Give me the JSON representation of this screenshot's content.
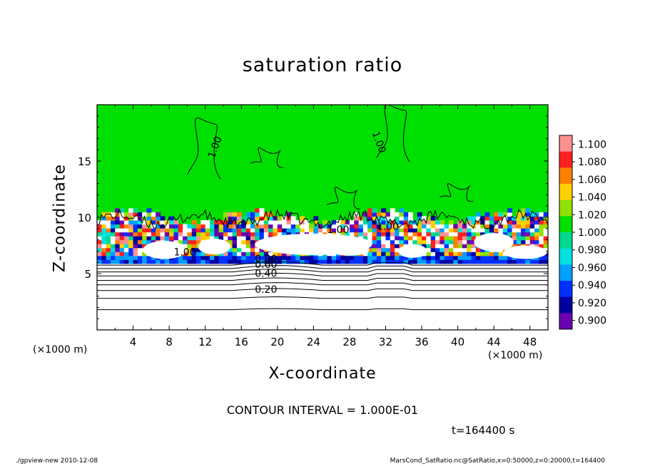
{
  "chart_data": {
    "type": "heatmap",
    "title": "saturation ratio",
    "xlabel": "X-coordinate",
    "ylabel": "Z-coordinate",
    "x_unit": "(×1000 m)",
    "xlim": [
      0,
      50
    ],
    "ylim": [
      0,
      20
    ],
    "x_ticks": [
      4,
      8,
      12,
      16,
      20,
      24,
      28,
      32,
      36,
      40,
      44,
      48
    ],
    "y_ticks": [
      5,
      10,
      15
    ],
    "colorbar": {
      "levels": [
        "0.900",
        "0.920",
        "0.940",
        "0.960",
        "0.980",
        "1.000",
        "1.020",
        "1.040",
        "1.060",
        "1.080",
        "1.100"
      ],
      "colors": [
        "#6a00b0",
        "#0000a0",
        "#0030ff",
        "#00a0ff",
        "#00e0e0",
        "#00d890",
        "#00e000",
        "#90e000",
        "#ffd000",
        "#ff8000",
        "#ff2020",
        "#ff9090"
      ]
    },
    "contour_labels": [
      "1.00",
      "1.00",
      "1.00",
      "1.00",
      "1.00",
      "0.80",
      "0.60",
      "0.40",
      "0.20"
    ],
    "contour_interval_text": "CONTOUR INTERVAL = 1.000E-01",
    "time_text": "t=164400 s"
  },
  "footer": {
    "left": "./gpview-new   2010-12-08",
    "right": "MarsCond_SatRatio.nc@SatRatio,x=0:50000,z=0:20000,t=164400"
  }
}
